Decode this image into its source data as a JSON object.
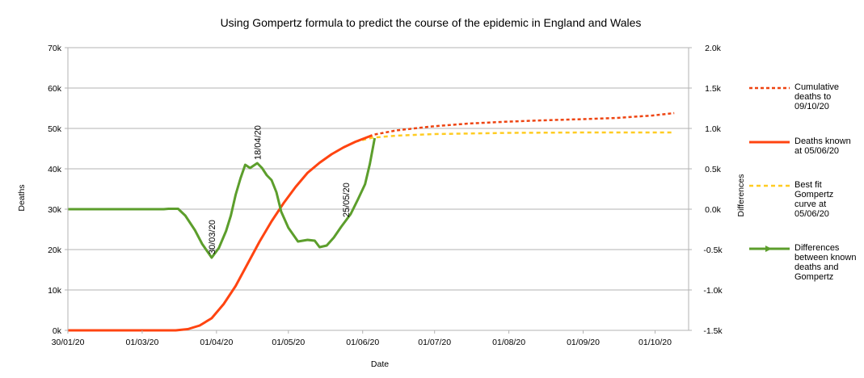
{
  "chart_data": {
    "type": "line",
    "title": "Using Gompertz formula to predict the course of the epidemic in England and Wales",
    "xlabel": "Date",
    "ylabel": "Deaths",
    "y2label": "Differences",
    "x_tick_labels": [
      "30/01/20",
      "01/03/20",
      "01/04/20",
      "01/05/20",
      "01/06/20",
      "01/07/20",
      "01/08/20",
      "01/09/20",
      "01/10/20"
    ],
    "y_tick_labels": [
      "0k",
      "10k",
      "20k",
      "30k",
      "40k",
      "50k",
      "60k",
      "70k"
    ],
    "y2_tick_labels": [
      "-1.5k",
      "-1.0k",
      "-0.5k",
      "0.0k",
      "0.5k",
      "1.0k",
      "1.5k",
      "2.0k"
    ],
    "ylim": [
      0,
      70000
    ],
    "y2lim": [
      -1500,
      2000
    ],
    "grid": "horizontal",
    "legend_position": "right",
    "series": [
      {
        "name": "Cumulative deaths to 09/10/20",
        "axis": "left",
        "color": "#ee4411",
        "style": "dotted",
        "points": [
          [
            "2020-06-06",
            48500
          ],
          [
            "2020-06-15",
            49500
          ],
          [
            "2020-06-30",
            50500
          ],
          [
            "2020-07-15",
            51200
          ],
          [
            "2020-08-01",
            51700
          ],
          [
            "2020-08-15",
            52000
          ],
          [
            "2020-09-01",
            52300
          ],
          [
            "2020-09-15",
            52600
          ],
          [
            "2020-09-30",
            53200
          ],
          [
            "2020-10-09",
            53800
          ]
        ]
      },
      {
        "name": "Deaths known at 05/06/20",
        "axis": "left",
        "color": "#ff4411",
        "style": "solid",
        "points": [
          [
            "2020-01-30",
            0
          ],
          [
            "2020-02-28",
            0
          ],
          [
            "2020-03-15",
            0
          ],
          [
            "2020-03-20",
            300
          ],
          [
            "2020-03-25",
            1200
          ],
          [
            "2020-03-30",
            3000
          ],
          [
            "2020-04-04",
            6500
          ],
          [
            "2020-04-09",
            11000
          ],
          [
            "2020-04-14",
            16500
          ],
          [
            "2020-04-19",
            22000
          ],
          [
            "2020-04-24",
            27000
          ],
          [
            "2020-04-29",
            31500
          ],
          [
            "2020-05-04",
            35500
          ],
          [
            "2020-05-09",
            39000
          ],
          [
            "2020-05-14",
            41500
          ],
          [
            "2020-05-19",
            43600
          ],
          [
            "2020-05-24",
            45300
          ],
          [
            "2020-05-29",
            46700
          ],
          [
            "2020-06-05",
            48300
          ]
        ]
      },
      {
        "name": "Best fit Gompertz curve at 05/06/20",
        "axis": "left",
        "color": "#ffcc22",
        "style": "dashed",
        "points": [
          [
            "2020-01-30",
            0
          ],
          [
            "2020-02-28",
            0
          ],
          [
            "2020-03-15",
            0
          ],
          [
            "2020-03-20",
            300
          ],
          [
            "2020-03-25",
            1200
          ],
          [
            "2020-03-30",
            3000
          ],
          [
            "2020-04-04",
            6500
          ],
          [
            "2020-04-09",
            11000
          ],
          [
            "2020-04-14",
            16500
          ],
          [
            "2020-04-19",
            22000
          ],
          [
            "2020-04-24",
            27000
          ],
          [
            "2020-04-29",
            31500
          ],
          [
            "2020-05-04",
            35500
          ],
          [
            "2020-05-09",
            39000
          ],
          [
            "2020-05-14",
            41500
          ],
          [
            "2020-05-19",
            43600
          ],
          [
            "2020-05-24",
            45300
          ],
          [
            "2020-05-29",
            46700
          ],
          [
            "2020-06-05",
            47700
          ],
          [
            "2020-06-15",
            48200
          ],
          [
            "2020-07-01",
            48600
          ],
          [
            "2020-08-01",
            48900
          ],
          [
            "2020-09-01",
            49000
          ],
          [
            "2020-10-09",
            49000
          ]
        ]
      },
      {
        "name": "Differences between known deaths and Gompertz",
        "axis": "right",
        "color": "#5c9e2c",
        "style": "solid",
        "points": [
          [
            "2020-01-30",
            0
          ],
          [
            "2020-03-10",
            0
          ],
          [
            "2020-03-12",
            5
          ],
          [
            "2020-03-16",
            5
          ],
          [
            "2020-03-19",
            -80
          ],
          [
            "2020-03-23",
            -260
          ],
          [
            "2020-03-26",
            -430
          ],
          [
            "2020-03-30",
            -600
          ],
          [
            "2020-04-02",
            -480
          ],
          [
            "2020-04-05",
            -270
          ],
          [
            "2020-04-07",
            -80
          ],
          [
            "2020-04-09",
            180
          ],
          [
            "2020-04-11",
            380
          ],
          [
            "2020-04-13",
            550
          ],
          [
            "2020-04-15",
            510
          ],
          [
            "2020-04-18",
            570
          ],
          [
            "2020-04-20",
            510
          ],
          [
            "2020-04-22",
            420
          ],
          [
            "2020-04-24",
            360
          ],
          [
            "2020-04-26",
            210
          ],
          [
            "2020-04-28",
            -30
          ],
          [
            "2020-05-01",
            -230
          ],
          [
            "2020-05-05",
            -400
          ],
          [
            "2020-05-09",
            -380
          ],
          [
            "2020-05-12",
            -390
          ],
          [
            "2020-05-14",
            -470
          ],
          [
            "2020-05-17",
            -450
          ],
          [
            "2020-05-20",
            -350
          ],
          [
            "2020-05-23",
            -220
          ],
          [
            "2020-05-27",
            -60
          ],
          [
            "2020-05-30",
            120
          ],
          [
            "2020-06-02",
            310
          ],
          [
            "2020-06-04",
            560
          ],
          [
            "2020-06-06",
            880
          ]
        ]
      }
    ],
    "annotations": [
      {
        "text": "30/03/20",
        "x": "2020-03-30",
        "y2": -600
      },
      {
        "text": "18/04/20",
        "x": "2020-04-18",
        "y2": 570
      },
      {
        "text": "25/05/20",
        "x": "2020-05-25",
        "y2": -140
      }
    ]
  }
}
